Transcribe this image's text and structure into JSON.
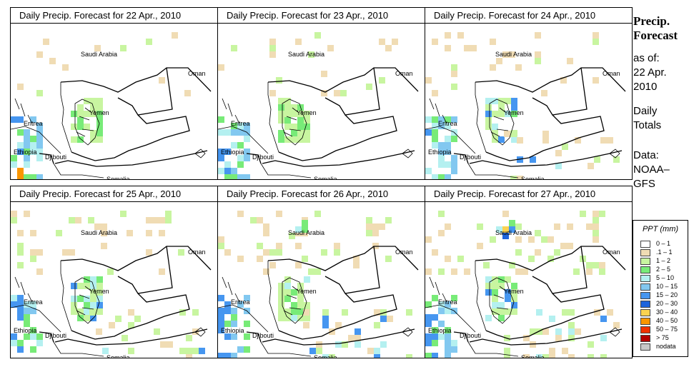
{
  "panels": [
    {
      "title": "Daily Precip. Forecast for  22 Apr., 2010",
      "day": 0
    },
    {
      "title": "Daily Precip. Forecast for  23 Apr., 2010",
      "day": 1
    },
    {
      "title": "Daily Precip. Forecast for  24 Apr., 2010",
      "day": 2
    },
    {
      "title": "Daily Precip. Forecast for  25 Apr., 2010",
      "day": 3
    },
    {
      "title": "Daily Precip. Forecast for  26 Apr., 2010",
      "day": 4
    },
    {
      "title": "Daily Precip. Forecast for  27 Apr., 2010",
      "day": 5
    }
  ],
  "map_labels": {
    "saudi_arabia": "Saudi Arabia",
    "oman": "Oman",
    "yemen": "Yemen",
    "eritrea": "Eritrea",
    "ethiopia": "Ethiopia",
    "djibouti": "Djibouti",
    "somalia": "Somalia"
  },
  "sidebar": {
    "title_line1": "Precip.",
    "title_line2": "Forecast",
    "asof_line1": "as of:",
    "asof_line2": "22 Apr.",
    "asof_line3": "2010",
    "totals_line1": "Daily",
    "totals_line2": "Totals",
    "data_line1": "Data:",
    "data_line2": "NOAA–",
    "data_line3": "GFS"
  },
  "legend": {
    "title": "PPT (mm)",
    "items": [
      {
        "label": "0 – 1",
        "color": "#ffffff"
      },
      {
        "label": ".1 – 1",
        "color": "#f0dcb4"
      },
      {
        "label": "1 – 2",
        "color": "#c8f5a0"
      },
      {
        "label": "2 – 5",
        "color": "#78eb78"
      },
      {
        "label": "5 – 10",
        "color": "#b4f0f0"
      },
      {
        "label": "10 – 15",
        "color": "#82c8f0"
      },
      {
        "label": "15 – 20",
        "color": "#4696f0"
      },
      {
        "label": "20 – 30",
        "color": "#1e64dc"
      },
      {
        "label": "30 – 40",
        "color": "#fad250"
      },
      {
        "label": "40 – 50",
        "color": "#fa9600"
      },
      {
        "label": "50 – 75",
        "color": "#f03200"
      },
      {
        "label": "> 75",
        "color": "#b40000"
      },
      {
        "label": "nodata",
        "color": "#c8c8c8"
      }
    ]
  }
}
